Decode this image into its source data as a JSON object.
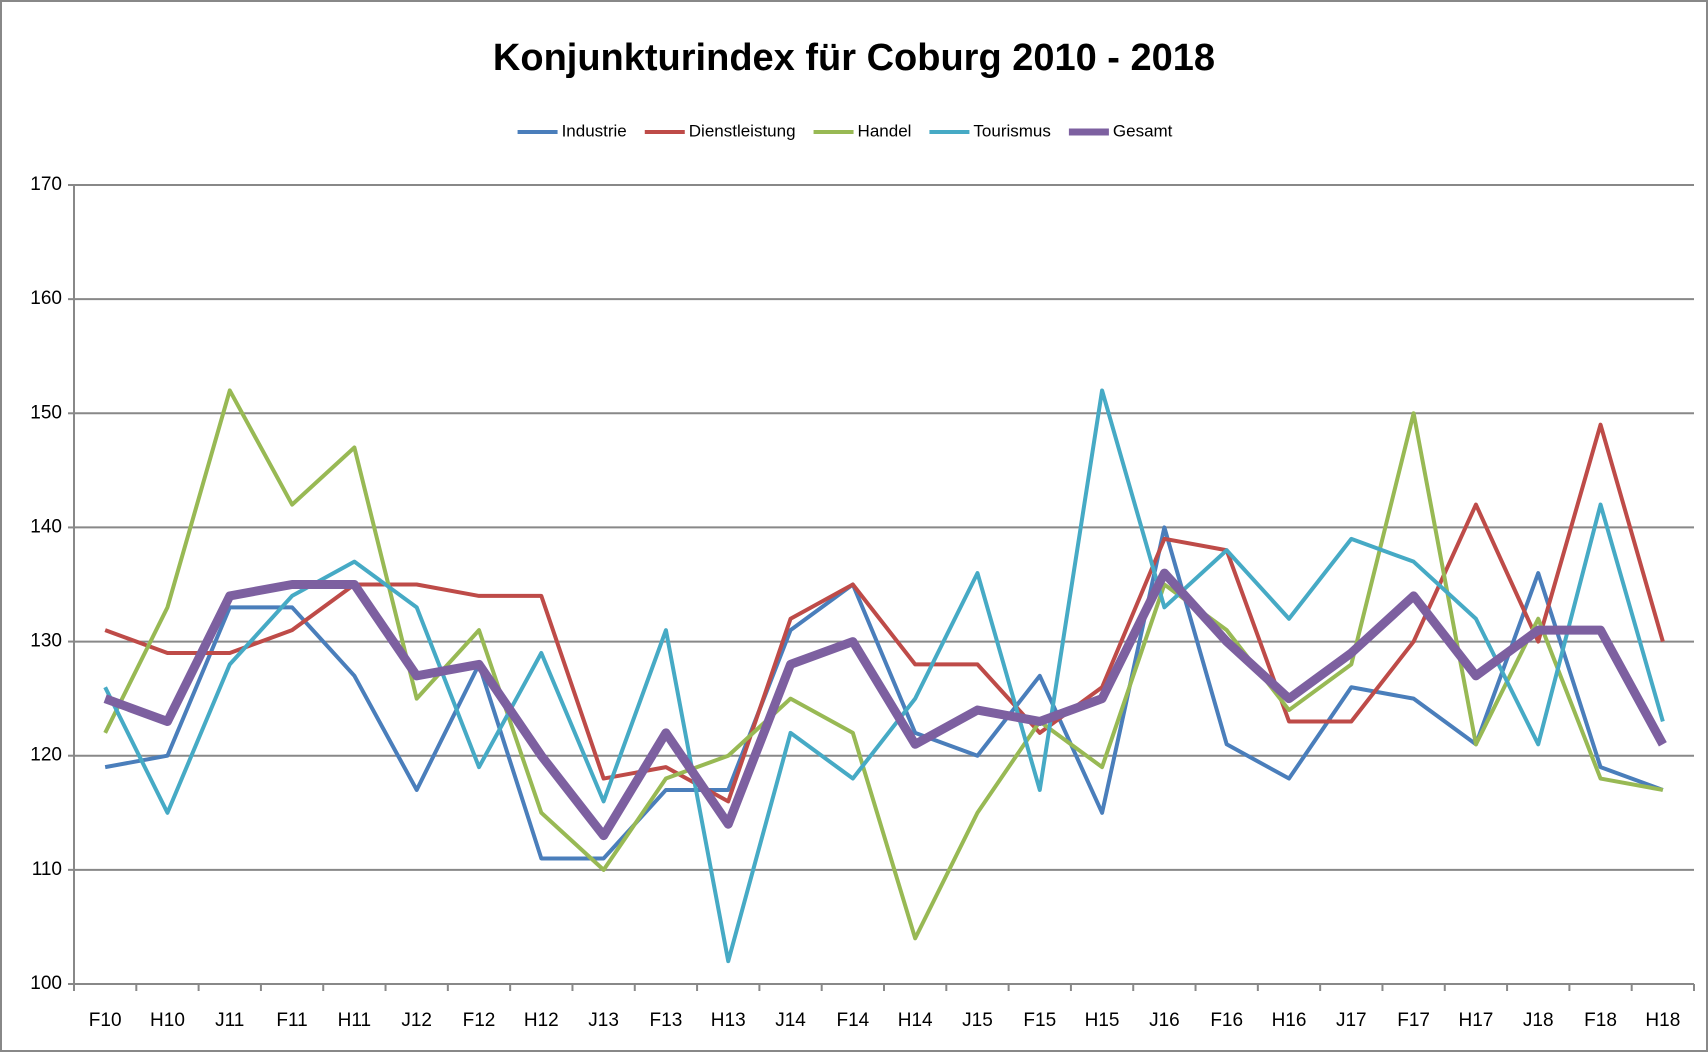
{
  "chart_data": {
    "type": "line",
    "title": "Konjunkturindex für Coburg 2010 - 2018",
    "categories": [
      "F10",
      "H10",
      "J11",
      "F11",
      "H11",
      "J12",
      "F12",
      "H12",
      "J13",
      "F13",
      "H13",
      "J14",
      "F14",
      "H14",
      "J15",
      "F15",
      "H15",
      "J16",
      "F16",
      "H16",
      "J17",
      "F17",
      "H17",
      "J18",
      "F18",
      "H18"
    ],
    "series": [
      {
        "name": "Industrie",
        "color": "#4a7ebb",
        "values": [
          119,
          120,
          133,
          133,
          127,
          117,
          128,
          111,
          111,
          117,
          117,
          131,
          135,
          122,
          120,
          127,
          115,
          140,
          121,
          118,
          126,
          125,
          121,
          136,
          119,
          117
        ]
      },
      {
        "name": "Dienstleistung",
        "color": "#be4b48",
        "values": [
          131,
          129,
          129,
          131,
          135,
          135,
          134,
          134,
          118,
          119,
          116,
          132,
          135,
          128,
          128,
          122,
          126,
          139,
          138,
          123,
          123,
          130,
          142,
          130,
          149,
          130
        ]
      },
      {
        "name": "Handel",
        "color": "#98b954",
        "values": [
          122,
          133,
          152,
          142,
          147,
          125,
          131,
          115,
          110,
          118,
          120,
          125,
          122,
          104,
          115,
          123,
          119,
          135,
          131,
          124,
          128,
          150,
          121,
          132,
          118,
          117
        ]
      },
      {
        "name": "Tourismus",
        "color": "#46aac5",
        "values": [
          126,
          115,
          128,
          134,
          137,
          133,
          119,
          129,
          116,
          131,
          102,
          122,
          118,
          125,
          136,
          117,
          152,
          133,
          138,
          132,
          139,
          137,
          132,
          121,
          142,
          123
        ]
      },
      {
        "name": "Gesamt",
        "color": "#7d60a0",
        "values": [
          125,
          123,
          134,
          135,
          135,
          127,
          128,
          120,
          113,
          122,
          114,
          128,
          130,
          121,
          124,
          123,
          125,
          136,
          130,
          125,
          129,
          134,
          127,
          131,
          131,
          121
        ]
      }
    ],
    "ylim": [
      100,
      170
    ],
    "yticks": [
      100,
      110,
      120,
      130,
      140,
      150,
      160,
      170
    ],
    "grid": true,
    "legend": "top"
  }
}
